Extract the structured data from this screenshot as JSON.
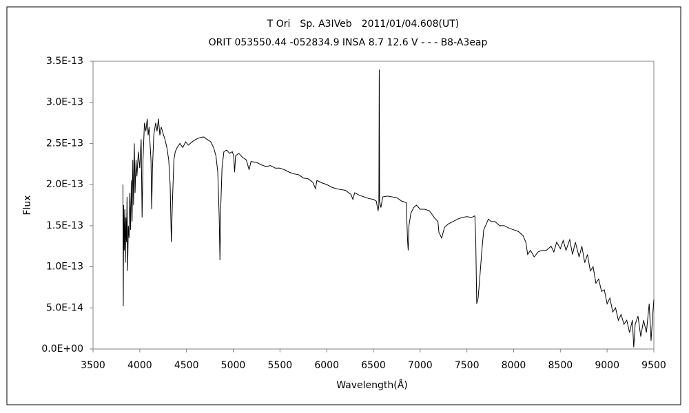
{
  "chart_data": {
    "type": "line",
    "title": "T Ori　Sp. A3IVeb　2011/01/04.608(UT)",
    "subtitle": "ORIT 053550.44 -052834.9 INSA 8.7 12.6 V - - - B8-A3eap",
    "x_label": "Wavelength(Å)",
    "y_label": "Flux",
    "color": "#000000",
    "xlim": [
      3500,
      9500
    ],
    "xticks": [
      3500,
      4000,
      4500,
      5000,
      5500,
      6000,
      6500,
      7000,
      7500,
      8000,
      8500,
      9000,
      9500
    ],
    "ylim": [
      0,
      3.5e-13
    ],
    "yticks": [
      {
        "value": 0,
        "label": "0.0E+00"
      },
      {
        "value": 5e-14,
        "label": "5.0E-14"
      },
      {
        "value": 1e-13,
        "label": "1.0E-13"
      },
      {
        "value": 1.5e-13,
        "label": "1.5E-13"
      },
      {
        "value": 2e-13,
        "label": "2.0E-13"
      },
      {
        "value": 2.5e-13,
        "label": "2.5E-13"
      },
      {
        "value": 3e-13,
        "label": "3.0E-13"
      },
      {
        "value": 3.5e-13,
        "label": "3.5E-13"
      }
    ],
    "grid": false,
    "x": [
      3820,
      3824,
      3828,
      3834,
      3840,
      3846,
      3852,
      3858,
      3864,
      3870,
      3878,
      3886,
      3894,
      3902,
      3910,
      3918,
      3926,
      3934,
      3942,
      3950,
      3960,
      3970,
      3985,
      4000,
      4015,
      4025,
      4035,
      4050,
      4065,
      4080,
      4090,
      4100,
      4110,
      4120,
      4128,
      4136,
      4150,
      4170,
      4185,
      4200,
      4215,
      4230,
      4250,
      4270,
      4290,
      4310,
      4325,
      4338,
      4350,
      4365,
      4380,
      4400,
      4430,
      4460,
      4490,
      4520,
      4560,
      4600,
      4640,
      4680,
      4720,
      4760,
      4790,
      4815,
      4835,
      4850,
      4858,
      4866,
      4880,
      4900,
      4930,
      4960,
      4990,
      5005,
      5015,
      5025,
      5060,
      5100,
      5140,
      5170,
      5190,
      5250,
      5300,
      5350,
      5400,
      5450,
      5500,
      5550,
      5600,
      5650,
      5700,
      5750,
      5800,
      5850,
      5880,
      5895,
      5950,
      6000,
      6050,
      6100,
      6150,
      6200,
      6260,
      6280,
      6300,
      6350,
      6400,
      6450,
      6500,
      6530,
      6550,
      6558,
      6562,
      6566,
      6580,
      6600,
      6650,
      6700,
      6750,
      6800,
      6850,
      6866,
      6872,
      6880,
      6900,
      6930,
      6960,
      7000,
      7050,
      7100,
      7150,
      7190,
      7200,
      7230,
      7260,
      7300,
      7350,
      7400,
      7450,
      7500,
      7550,
      7585,
      7595,
      7605,
      7620,
      7640,
      7660,
      7680,
      7700,
      7730,
      7760,
      7800,
      7850,
      7900,
      7950,
      8000,
      8050,
      8100,
      8130,
      8150,
      8180,
      8220,
      8260,
      8300,
      8350,
      8400,
      8430,
      8460,
      8500,
      8530,
      8560,
      8600,
      8630,
      8660,
      8700,
      8730,
      8760,
      8790,
      8820,
      8850,
      8880,
      8910,
      8940,
      8970,
      9000,
      9030,
      9060,
      9090,
      9120,
      9150,
      9180,
      9210,
      9240,
      9270,
      9285,
      9300,
      9330,
      9360,
      9390,
      9420,
      9450,
      9470,
      9490,
      9500
    ],
    "values": [
      2e-13,
      5.2e-14,
      1.75e-13,
      1.2e-13,
      1.7e-13,
      1.05e-13,
      1.6e-13,
      1.3e-13,
      1.85e-13,
      9.5e-14,
      1.5e-13,
      1.35e-13,
      1.9e-13,
      1.45e-13,
      2.05e-13,
      1.55e-13,
      2.3e-13,
      1.75e-13,
      2.5e-13,
      1.9e-13,
      2.3e-13,
      2.1e-13,
      2.4e-13,
      2.2e-13,
      2.55e-13,
      1.6e-13,
      2.3e-13,
      2.75e-13,
      2.65e-13,
      2.8e-13,
      2.6e-13,
      2.7e-13,
      2.5e-13,
      2.3e-13,
      1.7e-13,
      2.2e-13,
      2.6e-13,
      2.75e-13,
      2.65e-13,
      2.8e-13,
      2.6e-13,
      2.7e-13,
      2.62e-13,
      2.55e-13,
      2.45e-13,
      2.3e-13,
      2e-13,
      1.3e-13,
      1.8e-13,
      2.3e-13,
      2.4e-13,
      2.45e-13,
      2.5e-13,
      2.45e-13,
      2.52e-13,
      2.48e-13,
      2.52e-13,
      2.55e-13,
      2.57e-13,
      2.58e-13,
      2.55e-13,
      2.52e-13,
      2.45e-13,
      2.35e-13,
      2.15e-13,
      1.6e-13,
      1.08e-13,
      1.7e-13,
      2.2e-13,
      2.4e-13,
      2.42e-13,
      2.38e-13,
      2.4e-13,
      2.35e-13,
      2.15e-13,
      2.35e-13,
      2.38e-13,
      2.33e-13,
      2.3e-13,
      2.18e-13,
      2.28e-13,
      2.27e-13,
      2.24e-13,
      2.22e-13,
      2.23e-13,
      2.2e-13,
      2.2e-13,
      2.18e-13,
      2.15e-13,
      2.13e-13,
      2.12e-13,
      2.08e-13,
      2.07e-13,
      2.03e-13,
      1.95e-13,
      2.05e-13,
      2.02e-13,
      2e-13,
      1.97e-13,
      1.95e-13,
      1.94e-13,
      1.93e-13,
      1.88e-13,
      1.82e-13,
      1.9e-13,
      1.87e-13,
      1.85e-13,
      1.83e-13,
      1.82e-13,
      1.8e-13,
      1.68e-13,
      1.75e-13,
      3.4e-13,
      1.8e-13,
      1.72e-13,
      1.85e-13,
      1.86e-13,
      1.85e-13,
      1.84e-13,
      1.8e-13,
      1.78e-13,
      1.3e-13,
      1.2e-13,
      1.5e-13,
      1.65e-13,
      1.72e-13,
      1.75e-13,
      1.7e-13,
      1.7e-13,
      1.68e-13,
      1.6e-13,
      1.55e-13,
      1.42e-13,
      1.35e-13,
      1.48e-13,
      1.52e-13,
      1.55e-13,
      1.58e-13,
      1.6e-13,
      1.61e-13,
      1.6e-13,
      1.62e-13,
      1.3e-13,
      5.5e-14,
      6.2e-14,
      9e-14,
      1.2e-13,
      1.45e-13,
      1.5e-13,
      1.58e-13,
      1.55e-13,
      1.55e-13,
      1.5e-13,
      1.5e-13,
      1.47e-13,
      1.45e-13,
      1.43e-13,
      1.38e-13,
      1.3e-13,
      1.15e-13,
      1.2e-13,
      1.12e-13,
      1.18e-13,
      1.2e-13,
      1.2e-13,
      1.25e-13,
      1.18e-13,
      1.3e-13,
      1.22e-13,
      1.32e-13,
      1.2e-13,
      1.33e-13,
      1.15e-13,
      1.3e-13,
      1.12e-13,
      1.25e-13,
      1.05e-13,
      1.15e-13,
      9.5e-14,
      1e-13,
      8e-14,
      8.5e-14,
      7e-14,
      7.2e-14,
      5.5e-14,
      6.2e-14,
      4.5e-14,
      5e-14,
      3.5e-14,
      4.2e-14,
      3e-14,
      3.5e-14,
      2e-14,
      3.5e-14,
      2e-15,
      3e-14,
      4e-14,
      1.5e-14,
      3.5e-14,
      2e-14,
      5.5e-14,
      1e-14,
      4.5e-14,
      6e-14
    ]
  }
}
